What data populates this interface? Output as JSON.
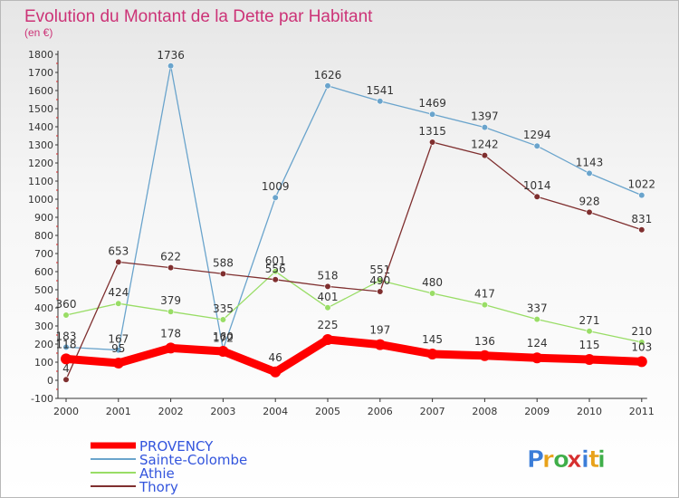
{
  "chart_data": {
    "type": "line",
    "title": "Evolution du Montant de la Dette par Habitant",
    "subtitle": "(en €)",
    "xlabel": "",
    "ylabel": "",
    "ylim": [
      -100,
      1800
    ],
    "y_ticks": [
      -100,
      0,
      100,
      200,
      300,
      400,
      500,
      600,
      700,
      800,
      900,
      1000,
      1100,
      1200,
      1300,
      1400,
      1500,
      1600,
      1700,
      1800
    ],
    "categories": [
      "2000",
      "2001",
      "2002",
      "2003",
      "2004",
      "2005",
      "2006",
      "2007",
      "2008",
      "2009",
      "2010",
      "2011"
    ],
    "grid": false,
    "legend_position": "bottom-left",
    "series": [
      {
        "name": "PROVENCY",
        "color": "#ff0000",
        "values": [
          118,
          95,
          178,
          160,
          46,
          225,
          197,
          145,
          136,
          124,
          115,
          103
        ]
      },
      {
        "name": "Sainte-Colombe",
        "color": "#6aa4cc",
        "values": [
          183,
          167,
          1736,
          172,
          1009,
          1626,
          1541,
          1469,
          1397,
          1294,
          1143,
          1022
        ]
      },
      {
        "name": "Athie",
        "color": "#99dd66",
        "values": [
          360,
          424,
          379,
          335,
          601,
          401,
          551,
          480,
          417,
          337,
          271,
          210
        ]
      },
      {
        "name": "Thory",
        "color": "#7f2f2f",
        "values": [
          4,
          653,
          622,
          588,
          556,
          518,
          490,
          1315,
          1242,
          1014,
          928,
          831
        ]
      }
    ]
  },
  "branding": {
    "logo_letters": [
      "P",
      "r",
      "o",
      "x",
      "i",
      "t",
      "i"
    ],
    "logo_colors": [
      "#3b7dd8",
      "#e8a21a",
      "#3fae49",
      "#d62f2f",
      "#3b7dd8",
      "#e8a21a",
      "#3fae49"
    ]
  },
  "colors": {
    "title": "#cc3377",
    "axis": "#333333",
    "label": "#333333"
  }
}
